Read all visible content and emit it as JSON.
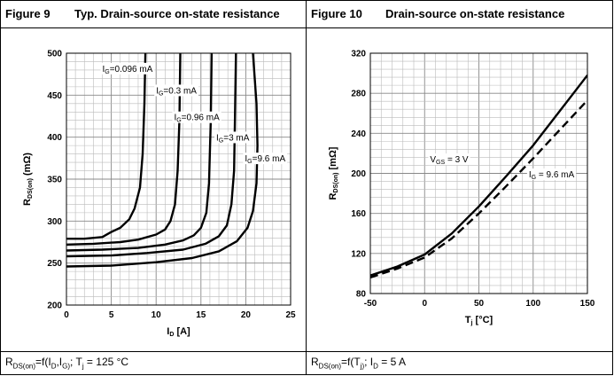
{
  "figure9": {
    "number": "Figure 9",
    "title": "Typ. Drain-source on-state resistance",
    "caption": "R_DS(on)=f(I_D,I_G); T_j = 125 °C",
    "chart_data": {
      "type": "line",
      "xlabel": "I_D [A]",
      "ylabel": "R_DS(on) (mΩ)",
      "xlim": [
        0,
        25
      ],
      "ylim": [
        200,
        500
      ],
      "xticks": [
        0,
        5,
        10,
        15,
        20,
        25
      ],
      "yticks": [
        200,
        250,
        300,
        350,
        400,
        450,
        500
      ],
      "grid": true,
      "series": [
        {
          "name": "I_G=0.096 mA",
          "x": [
            0,
            2,
            4,
            5,
            6,
            7,
            7.6,
            8.2,
            8.5,
            8.7,
            8.8
          ],
          "y": [
            279,
            279,
            281,
            287,
            292,
            302,
            315,
            340,
            380,
            440,
            500
          ]
        },
        {
          "name": "I_G=0.3 mA",
          "x": [
            0,
            3,
            6,
            8,
            10,
            11,
            11.6,
            12.1,
            12.4,
            12.6,
            12.7
          ],
          "y": [
            272,
            273,
            275,
            278,
            284,
            290,
            300,
            320,
            360,
            420,
            500
          ]
        },
        {
          "name": "I_G=0.96 mA",
          "x": [
            0,
            4,
            8,
            11,
            13,
            14.2,
            15,
            15.6,
            15.9,
            16.1,
            16.2
          ],
          "y": [
            265,
            266,
            268,
            272,
            277,
            283,
            292,
            310,
            345,
            420,
            500
          ]
        },
        {
          "name": "I_G=3 mA",
          "x": [
            0,
            5,
            9,
            13,
            15.5,
            17,
            17.9,
            18.4,
            18.7,
            18.8,
            18.9
          ],
          "y": [
            258,
            259,
            262,
            266,
            273,
            282,
            295,
            320,
            360,
            430,
            500
          ]
        },
        {
          "name": "I_G=9.6 mA",
          "x": [
            0,
            5,
            10,
            14,
            17,
            19,
            20.2,
            20.8,
            21.2,
            21.3,
            21.2,
            20.8
          ],
          "y": [
            246,
            247,
            251,
            256,
            264,
            276,
            292,
            312,
            345,
            390,
            440,
            500
          ]
        }
      ],
      "annotations": [
        "I_G=0.096 mA",
        "I_G=0.3 mA",
        "I_G=0.96 mA",
        "I_G=3 mA",
        "I_G=9.6 mA"
      ]
    }
  },
  "figure10": {
    "number": "Figure 10",
    "title": "Drain-source on-state resistance",
    "caption": "R_DS(on)=f(T_j); I_D = 5 A",
    "chart_data": {
      "type": "line",
      "xlabel": "T_j [°C]",
      "ylabel": "R_DS(on) [mΩ]",
      "xlim": [
        -50,
        150
      ],
      "ylim": [
        80,
        320
      ],
      "xticks": [
        -50,
        0,
        50,
        100,
        150
      ],
      "yticks": [
        80,
        120,
        160,
        200,
        240,
        280,
        320
      ],
      "grid": true,
      "series": [
        {
          "name": "V_GS = 3 V",
          "style": "solid",
          "x": [
            -50,
            -25,
            0,
            25,
            50,
            75,
            100,
            125,
            150
          ],
          "y": [
            98,
            107,
            119,
            140,
            167,
            197,
            228,
            263,
            298
          ]
        },
        {
          "name": "I_G = 9.6 mA",
          "style": "dashed",
          "x": [
            -50,
            -25,
            0,
            25,
            50,
            75,
            100,
            125,
            150
          ],
          "y": [
            96,
            105,
            116,
            135,
            160,
            187,
            215,
            244,
            273
          ]
        }
      ],
      "annotations": [
        "V_GS = 3 V",
        "I_G = 9.6 mA"
      ]
    }
  }
}
